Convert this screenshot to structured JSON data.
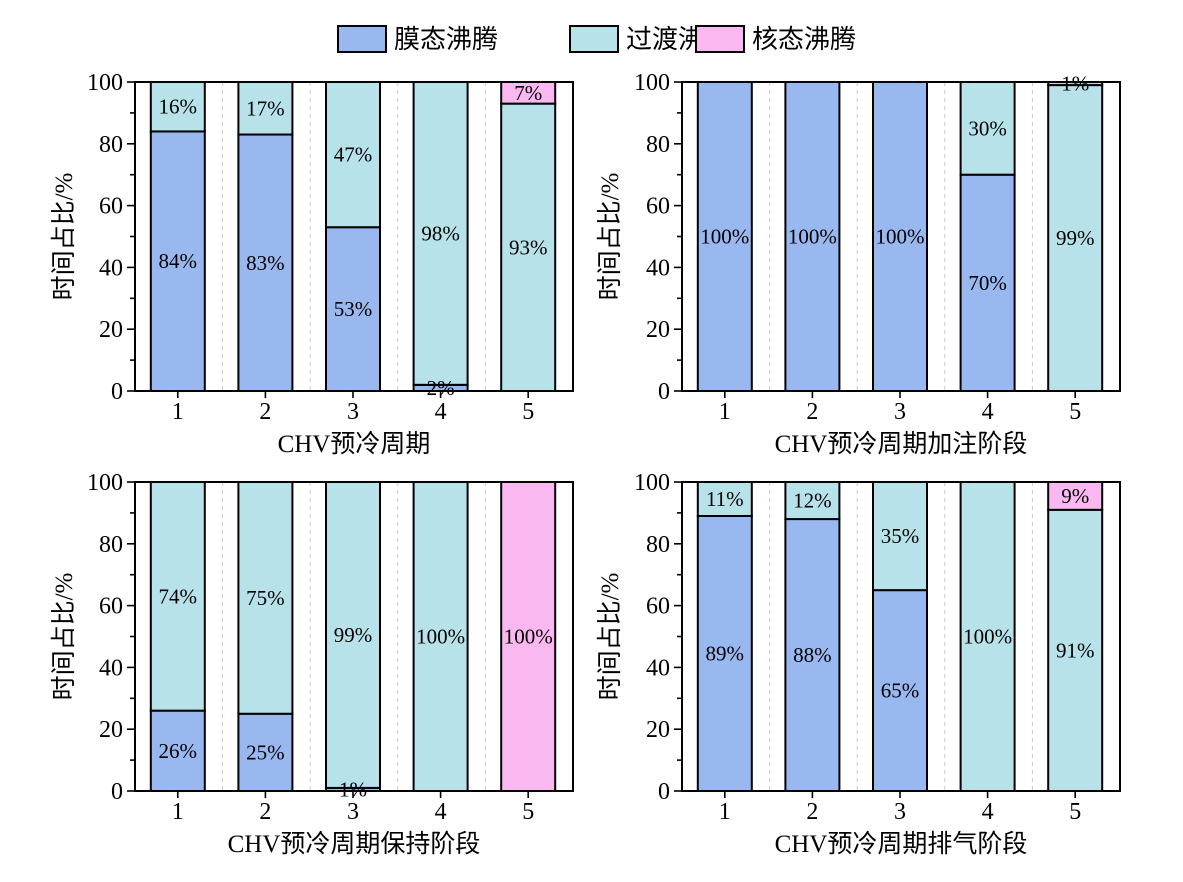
{
  "legend": {
    "items": [
      {
        "name": "膜态沸腾",
        "color": "#9ab8f0"
      },
      {
        "name": "过渡沸腾",
        "color": "#b8e2ea"
      },
      {
        "name": "核态沸腾",
        "color": "#f9b8f0"
      }
    ]
  },
  "chart_data": [
    {
      "type": "bar",
      "stacked": true,
      "categories": [
        "1",
        "2",
        "3",
        "4",
        "5"
      ],
      "xlabel": "CHV预冷周期",
      "ylabel": "时间占比/%",
      "ylim": [
        0,
        100
      ],
      "yticks": [
        "0",
        "20",
        "40",
        "60",
        "80",
        "100"
      ],
      "series": [
        {
          "name": "膜态沸腾",
          "values": [
            84,
            83,
            53,
            2,
            0
          ],
          "labels": [
            "84%",
            "83%",
            "53%",
            "2%",
            ""
          ]
        },
        {
          "name": "过渡沸腾",
          "values": [
            16,
            17,
            47,
            98,
            93
          ],
          "labels": [
            "16%",
            "17%",
            "47%",
            "98%",
            "93%"
          ]
        },
        {
          "name": "核态沸腾",
          "values": [
            0,
            0,
            0,
            0,
            7
          ],
          "labels": [
            "",
            "",
            "",
            "",
            "7%"
          ]
        }
      ]
    },
    {
      "type": "bar",
      "stacked": true,
      "categories": [
        "1",
        "2",
        "3",
        "4",
        "5"
      ],
      "xlabel": "CHV预冷周期加注阶段",
      "ylabel": "时间占比/%",
      "ylim": [
        0,
        100
      ],
      "yticks": [
        "0",
        "20",
        "40",
        "60",
        "80",
        "100"
      ],
      "series": [
        {
          "name": "膜态沸腾",
          "values": [
            100,
            100,
            100,
            70,
            0
          ],
          "labels": [
            "100%",
            "100%",
            "100%",
            "70%",
            ""
          ]
        },
        {
          "name": "过渡沸腾",
          "values": [
            0,
            0,
            0,
            30,
            99
          ],
          "labels": [
            "",
            "",
            "",
            "30%",
            "99%"
          ]
        },
        {
          "name": "核态沸腾",
          "values": [
            0,
            0,
            0,
            0,
            1
          ],
          "labels": [
            "",
            "",
            "",
            "",
            "1%"
          ]
        }
      ]
    },
    {
      "type": "bar",
      "stacked": true,
      "categories": [
        "1",
        "2",
        "3",
        "4",
        "5"
      ],
      "xlabel": "CHV预冷周期保持阶段",
      "ylabel": "时间占比/%",
      "ylim": [
        0,
        100
      ],
      "yticks": [
        "0",
        "20",
        "40",
        "60",
        "80",
        "100"
      ],
      "series": [
        {
          "name": "膜态沸腾",
          "values": [
            26,
            25,
            1,
            0,
            0
          ],
          "labels": [
            "26%",
            "25%",
            "1%",
            "",
            ""
          ]
        },
        {
          "name": "过渡沸腾",
          "values": [
            74,
            75,
            99,
            100,
            0
          ],
          "labels": [
            "74%",
            "75%",
            "99%",
            "100%",
            ""
          ]
        },
        {
          "name": "核态沸腾",
          "values": [
            0,
            0,
            0,
            0,
            100
          ],
          "labels": [
            "",
            "",
            "",
            "",
            "100%"
          ]
        }
      ]
    },
    {
      "type": "bar",
      "stacked": true,
      "categories": [
        "1",
        "2",
        "3",
        "4",
        "5"
      ],
      "xlabel": "CHV预冷周期排气阶段",
      "ylabel": "时间占比/%",
      "ylim": [
        0,
        100
      ],
      "yticks": [
        "0",
        "20",
        "40",
        "60",
        "80",
        "100"
      ],
      "series": [
        {
          "name": "膜态沸腾",
          "values": [
            89,
            88,
            65,
            0,
            0
          ],
          "labels": [
            "89%",
            "88%",
            "65%",
            "",
            ""
          ]
        },
        {
          "name": "过渡沸腾",
          "values": [
            11,
            12,
            35,
            100,
            91
          ],
          "labels": [
            "11%",
            "12%",
            "35%",
            "100%",
            "91%"
          ]
        },
        {
          "name": "核态沸腾",
          "values": [
            0,
            0,
            0,
            0,
            9
          ],
          "labels": [
            "",
            "",
            "",
            "",
            "9%"
          ]
        }
      ]
    }
  ]
}
